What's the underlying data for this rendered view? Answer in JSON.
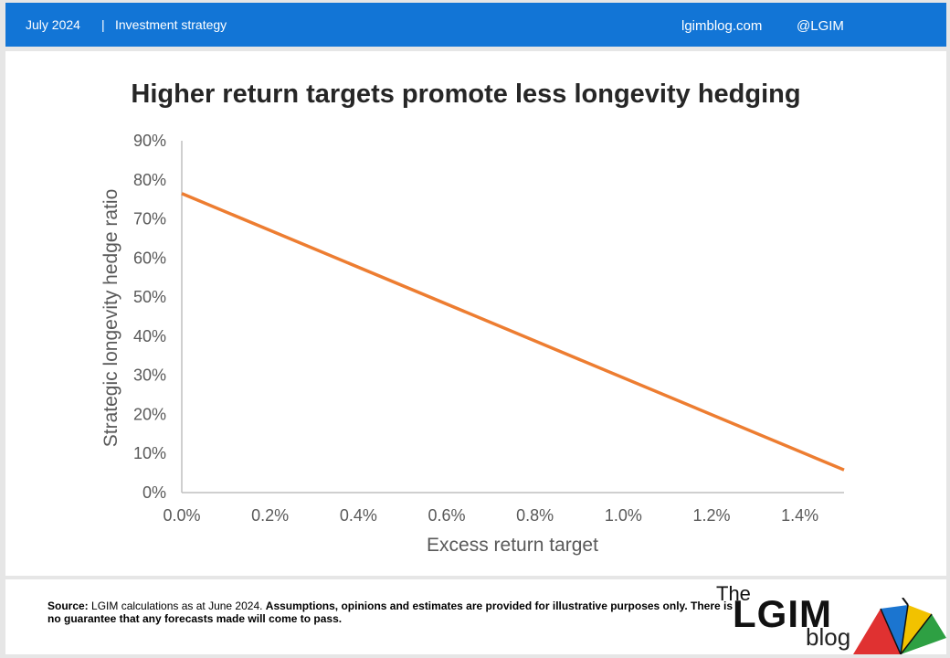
{
  "header": {
    "date": "July 2024",
    "separator": "|",
    "category": "Investment strategy",
    "site": "lgimblog.com",
    "handle": "@LGIM"
  },
  "footer": {
    "source_label": "Source:",
    "source_text": " LGIM calculations as at June 2024. ",
    "disclaimer": "Assumptions,  opinions and estimates are provided for illustrative purposes only. There is no guarantee that any forecasts  made will come to pass."
  },
  "logo": {
    "the": "The",
    "lgim": "LGIM",
    "blog": "blog"
  },
  "colors": {
    "header_bg": "#1275d6",
    "series": "#ed7d31",
    "axis": "#bfbfbf",
    "tick_text": "#595959"
  },
  "chart_data": {
    "type": "line",
    "title": "Higher return targets promote less longevity hedging",
    "xlabel": "Excess return target",
    "ylabel": "Strategic longevity hedge ratio",
    "x_ticks": [
      "0.0%",
      "0.2%",
      "0.4%",
      "0.6%",
      "0.8%",
      "1.0%",
      "1.2%",
      "1.4%"
    ],
    "y_ticks": [
      "0%",
      "10%",
      "20%",
      "30%",
      "40%",
      "50%",
      "60%",
      "70%",
      "80%",
      "90%"
    ],
    "xlim": [
      0,
      1.5
    ],
    "ylim": [
      0,
      90
    ],
    "grid": false,
    "series": [
      {
        "x": [
          0.0,
          1.5
        ],
        "y": [
          76.5,
          5.8
        ]
      }
    ]
  }
}
